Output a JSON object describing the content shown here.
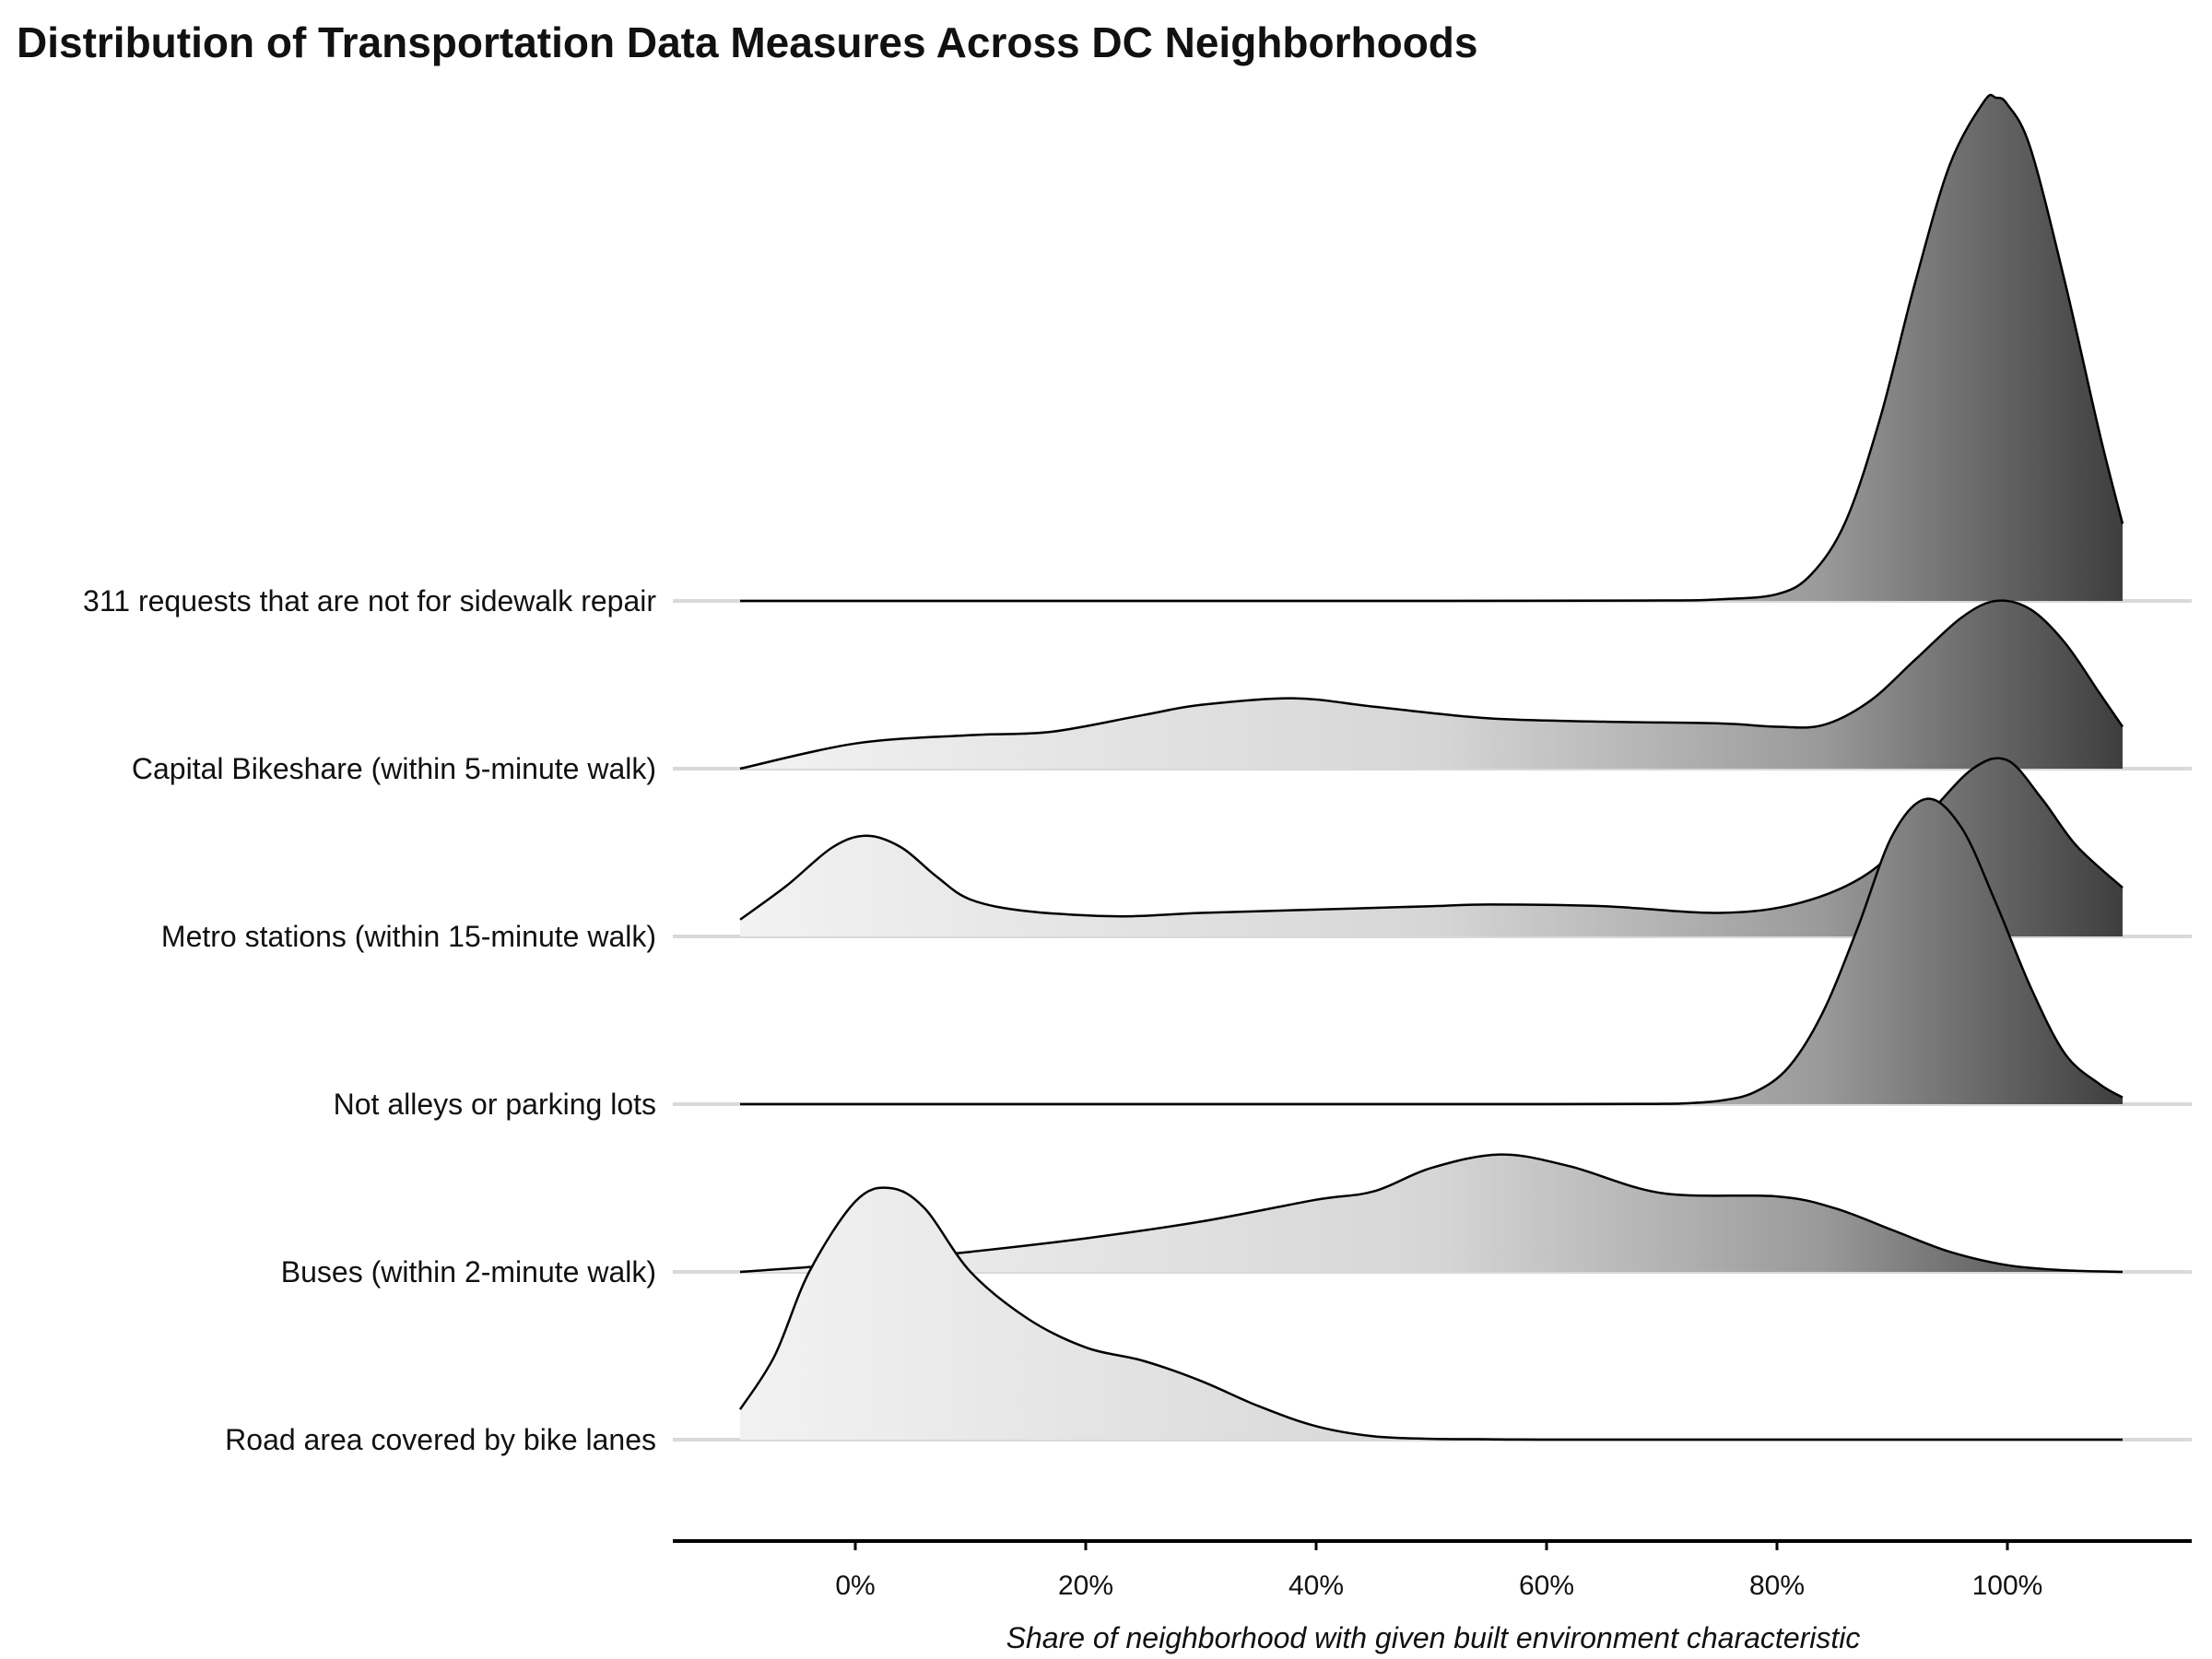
{
  "chart_data": {
    "type": "ridgeline",
    "title": "Distribution of Transportation Data Measures Across DC Neighborhoods",
    "xlabel": "Share of neighborhood with given built environment characteristic",
    "ylabel": "",
    "xlim": [
      -0.1,
      1.1
    ],
    "x_ticks": [
      0,
      0.2,
      0.4,
      0.6,
      0.8,
      1.0
    ],
    "x_tick_labels": [
      "0%",
      "20%",
      "40%",
      "60%",
      "80%",
      "100%"
    ],
    "fill": "gradient by x value, light gray (#f2f2f2) at low x to dark gray (#3d3d3d) at high x",
    "grid": "horizontal baseline per category",
    "legend": "none",
    "categories": [
      "311 requests that are not for sidewalk repair",
      "Capital Bikeshare (within 5-minute walk)",
      "Metro stations (within 15-minute walk)",
      "Not alleys or parking lots",
      "Buses (within 2-minute walk)",
      "Road area covered by bike lanes"
    ],
    "series": [
      {
        "name": "311 requests that are not for sidewalk repair",
        "x": [
          -0.1,
          0.5,
          0.7,
          0.75,
          0.8,
          0.83,
          0.86,
          0.89,
          0.92,
          0.95,
          0.98,
          0.99,
          1.0,
          1.02,
          1.05,
          1.08,
          1.1
        ],
        "density": [
          0,
          0,
          0.003,
          0.01,
          0.04,
          0.16,
          0.48,
          1.1,
          1.9,
          2.6,
          2.98,
          3.0,
          2.96,
          2.7,
          1.9,
          1.0,
          0.46
        ]
      },
      {
        "name": "Capital Bikeshare (within 5-minute walk)",
        "x": [
          -0.1,
          0.0,
          0.1,
          0.17,
          0.25,
          0.3,
          0.38,
          0.45,
          0.55,
          0.65,
          0.75,
          0.8,
          0.84,
          0.88,
          0.92,
          0.96,
          0.99,
          1.02,
          1.05,
          1.08,
          1.1
        ],
        "density": [
          0,
          0.15,
          0.2,
          0.22,
          0.32,
          0.38,
          0.42,
          0.37,
          0.3,
          0.28,
          0.27,
          0.25,
          0.26,
          0.4,
          0.65,
          0.9,
          1.0,
          0.95,
          0.75,
          0.45,
          0.25
        ]
      },
      {
        "name": "Metro stations (within 15-minute walk)",
        "x": [
          -0.1,
          -0.06,
          -0.02,
          0.01,
          0.04,
          0.07,
          0.1,
          0.15,
          0.23,
          0.3,
          0.4,
          0.5,
          0.55,
          0.65,
          0.75,
          0.82,
          0.88,
          0.93,
          0.97,
          1.0,
          1.03,
          1.06,
          1.1
        ],
        "density": [
          0.1,
          0.3,
          0.53,
          0.6,
          0.53,
          0.36,
          0.22,
          0.15,
          0.12,
          0.14,
          0.16,
          0.18,
          0.19,
          0.18,
          0.14,
          0.2,
          0.38,
          0.72,
          1.0,
          1.05,
          0.82,
          0.54,
          0.29
        ]
      },
      {
        "name": "Not alleys or parking lots",
        "x": [
          -0.1,
          0.6,
          0.7,
          0.72,
          0.75,
          0.78,
          0.81,
          0.84,
          0.87,
          0.9,
          0.93,
          0.96,
          0.99,
          1.02,
          1.05,
          1.08,
          1.1
        ],
        "density": [
          0,
          0,
          0.002,
          0.005,
          0.02,
          0.07,
          0.22,
          0.55,
          1.05,
          1.6,
          1.82,
          1.65,
          1.2,
          0.7,
          0.3,
          0.12,
          0.04
        ]
      },
      {
        "name": "Buses (within 2-minute walk)",
        "x": [
          -0.1,
          0.0,
          0.1,
          0.2,
          0.3,
          0.4,
          0.45,
          0.5,
          0.56,
          0.62,
          0.7,
          0.8,
          0.85,
          0.9,
          0.95,
          1.0,
          1.05,
          1.1
        ],
        "density": [
          0,
          0.05,
          0.12,
          0.2,
          0.3,
          0.43,
          0.48,
          0.62,
          0.7,
          0.63,
          0.47,
          0.45,
          0.38,
          0.25,
          0.12,
          0.04,
          0.01,
          0
        ]
      },
      {
        "name": "Road area covered by bike lanes",
        "x": [
          -0.1,
          -0.07,
          -0.04,
          0.0,
          0.03,
          0.06,
          0.1,
          0.15,
          0.2,
          0.25,
          0.3,
          0.35,
          0.4,
          0.45,
          0.5,
          0.55,
          0.6,
          0.8,
          1.1
        ],
        "density": [
          0.18,
          0.5,
          1.0,
          1.42,
          1.5,
          1.38,
          1.0,
          0.72,
          0.55,
          0.47,
          0.35,
          0.2,
          0.08,
          0.02,
          0.005,
          0.002,
          0,
          0,
          0
        ]
      }
    ]
  }
}
